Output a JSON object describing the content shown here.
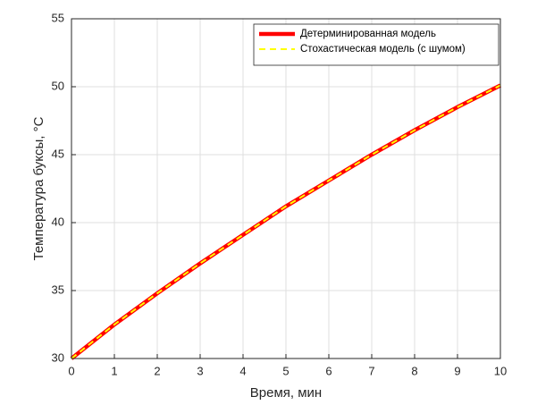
{
  "chart_data": {
    "type": "line",
    "x_label": "Время, мин",
    "y_label": "Температура буксы, °C",
    "x": [
      0,
      1,
      2,
      3,
      4,
      5,
      6,
      7,
      8,
      9,
      10
    ],
    "series": [
      {
        "name": "Детерминированная модель",
        "color": "#ff0000",
        "dashed": false,
        "values": [
          30,
          32.5,
          34.8,
          37.0,
          39.1,
          41.2,
          43.1,
          45.0,
          46.8,
          48.5,
          50.1
        ]
      },
      {
        "name": "Стохастическая модель (с шумом)",
        "color": "#ffff00",
        "dashed": true,
        "values": [
          30,
          32.5,
          34.8,
          37.0,
          39.1,
          41.2,
          43.1,
          45.0,
          46.8,
          48.5,
          50.1
        ]
      }
    ],
    "xlim": [
      0,
      10
    ],
    "xticks": [
      0,
      1,
      2,
      3,
      4,
      5,
      6,
      7,
      8,
      9,
      10
    ],
    "ylim": [
      30,
      55
    ],
    "yticks": [
      30,
      35,
      40,
      45,
      50,
      55
    ],
    "grid": true,
    "legend": "top-right"
  }
}
